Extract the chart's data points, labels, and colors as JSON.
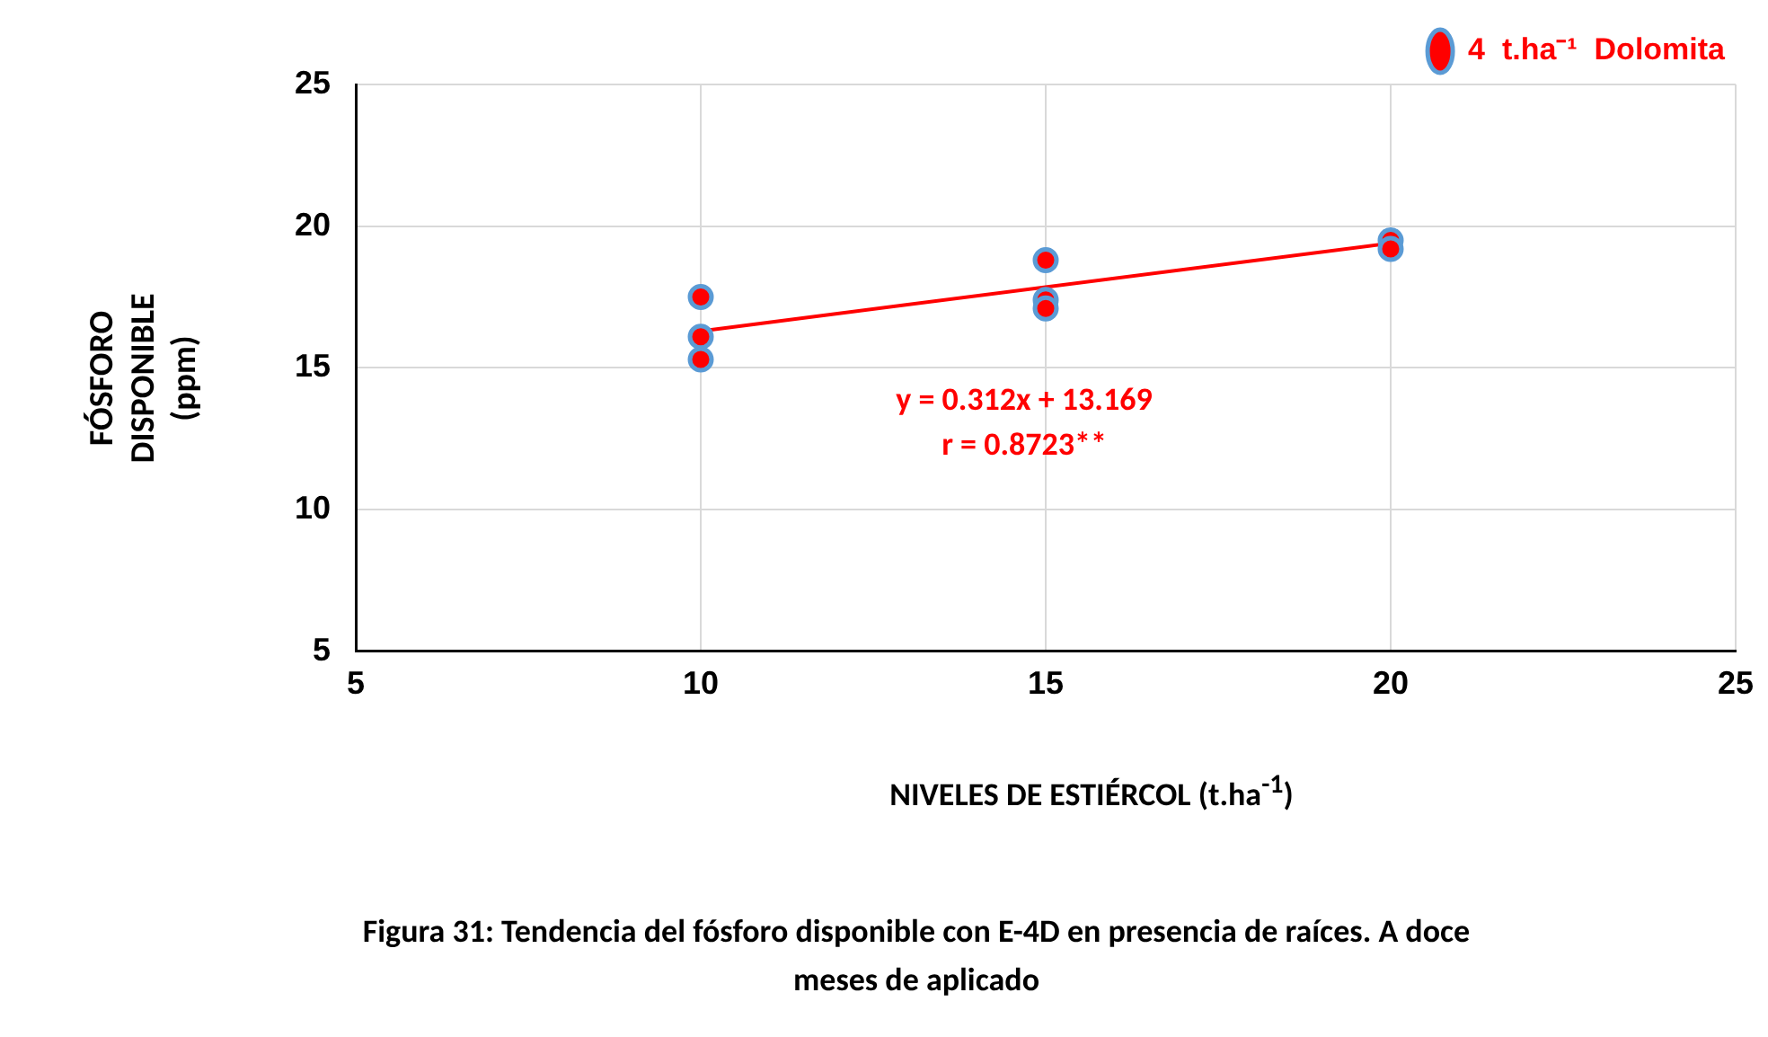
{
  "chart_data": {
    "type": "scatter",
    "title": "Figura 31:  Tendencia del fósforo disponible con  E-4D en presencia de raíces. A doce meses de aplicado",
    "xlabel": "NIVELES DE ESTIÉRCOL (t.ha$^{-1}$)",
    "ylabel": "FÓSFORO DISPONIBLE (ppm)",
    "x": [
      10,
      10,
      10,
      15,
      15,
      15,
      20,
      20
    ],
    "series": [
      {
        "name": "4  t.ha⁻¹  Dolomita",
        "color": "#ff0000",
        "marker": "circle",
        "values": [
          17.5,
          16.1,
          15.3,
          18.8,
          17.4,
          17.1,
          19.5,
          19.2
        ]
      },
      {
        "type": "line",
        "x": [
          10,
          20
        ],
        "color": "#ff0000",
        "marker": "none",
        "values": [
          16.3,
          19.4
        ]
      }
    ],
    "annotations": [
      "y = 0.312x + 13.169",
      "r = 0.8723**"
    ],
    "xlim": [
      5,
      25
    ],
    "xticks": [
      5,
      10,
      15,
      20,
      25
    ],
    "ylim": [
      5,
      25
    ],
    "yticks": [
      5,
      10,
      15,
      20,
      25
    ],
    "grid": true,
    "legend": "top right"
  }
}
